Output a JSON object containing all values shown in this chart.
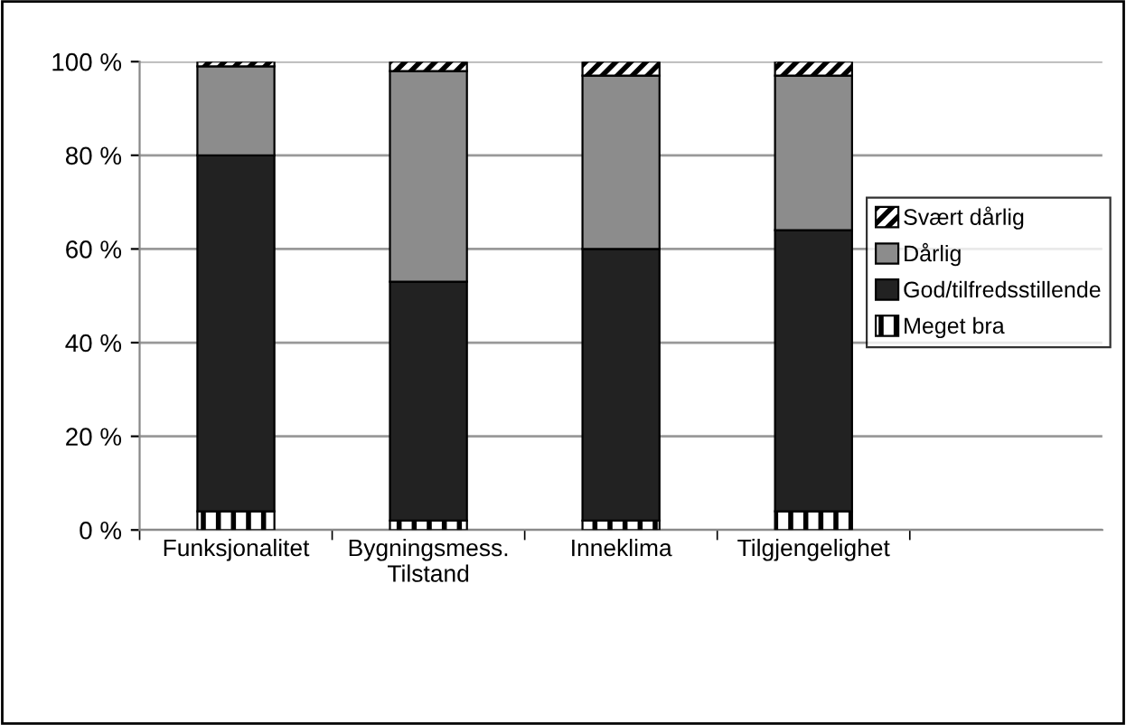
{
  "chart_data": {
    "type": "bar",
    "stacked": true,
    "categories": [
      "Funksjonalitet",
      "Bygningsmess.\nTilstand",
      "Inneklima",
      "Tilgjengelighet",
      null
    ],
    "series": [
      {
        "name": "Meget bra",
        "color": "#000000",
        "values": [
          4,
          2,
          2,
          4,
          null
        ]
      },
      {
        "name": "God/tilfredsstillende",
        "color": "#222222",
        "values": [
          76,
          51,
          58,
          60,
          null
        ]
      },
      {
        "name": "Dårlig",
        "color": "#8c8c8c",
        "values": [
          19,
          45,
          37,
          33,
          null
        ]
      },
      {
        "name": "Svært dårlig",
        "color": "#000000",
        "values": [
          1,
          2,
          3,
          3,
          null
        ]
      }
    ],
    "ylim": [
      0,
      100
    ],
    "yticks": [
      {
        "value": 0,
        "label": "0 %"
      },
      {
        "value": 20,
        "label": "20 %"
      },
      {
        "value": 40,
        "label": "40 %"
      },
      {
        "value": 60,
        "label": "60 %"
      },
      {
        "value": 80,
        "label": "80 %"
      },
      {
        "value": 100,
        "label": "100 %"
      }
    ],
    "grid": "y",
    "legend": "right"
  }
}
